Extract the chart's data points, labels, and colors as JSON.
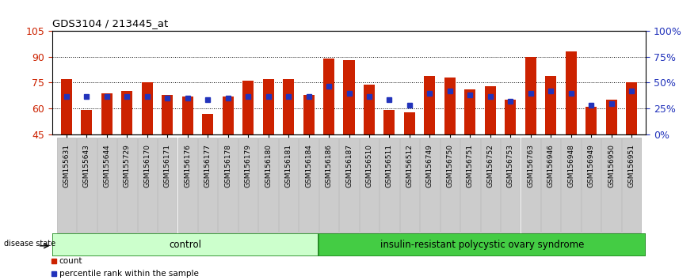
{
  "title": "GDS3104 / 213445_at",
  "samples": [
    "GSM155631",
    "GSM155643",
    "GSM155644",
    "GSM155729",
    "GSM156170",
    "GSM156171",
    "GSM156176",
    "GSM156177",
    "GSM156178",
    "GSM156179",
    "GSM156180",
    "GSM156181",
    "GSM156184",
    "GSM156186",
    "GSM156187",
    "GSM156510",
    "GSM156511",
    "GSM156512",
    "GSM156749",
    "GSM156750",
    "GSM156751",
    "GSM156752",
    "GSM156753",
    "GSM156763",
    "GSM156946",
    "GSM156948",
    "GSM156949",
    "GSM156950",
    "GSM156951"
  ],
  "bar_values": [
    77,
    59,
    69,
    70,
    75,
    68,
    67,
    57,
    67,
    76,
    77,
    77,
    68,
    89,
    88,
    74,
    59,
    58,
    79,
    78,
    71,
    73,
    65,
    90,
    79,
    93,
    61,
    65,
    75
  ],
  "blue_values": [
    67,
    67,
    67,
    67,
    67,
    66,
    66,
    65,
    66,
    67,
    67,
    67,
    67,
    73,
    69,
    67,
    65,
    62,
    69,
    70,
    68,
    67,
    64,
    69,
    70,
    69,
    62,
    63,
    70
  ],
  "y_min": 45,
  "y_max": 105,
  "yticks_left": [
    45,
    60,
    75,
    90,
    105
  ],
  "right_pct_ticks": [
    0,
    25,
    50,
    75,
    100
  ],
  "grid_values": [
    60,
    75,
    90
  ],
  "bar_color": "#cc2200",
  "blue_color": "#2233bb",
  "n_control": 13,
  "group_labels": [
    "control",
    "insulin-resistant polycystic ovary syndrome"
  ],
  "ctrl_facecolor": "#ccffcc",
  "ctrl_edgecolor": "#228822",
  "dis_facecolor": "#44cc44",
  "dis_edgecolor": "#228822",
  "disease_state_label": "disease state",
  "legend_count_label": "count",
  "legend_pct_label": "percentile rank within the sample",
  "bar_width": 0.55,
  "blue_marker_size": 4,
  "tick_label_fontsize": 6.5,
  "tick_bg_color": "#cccccc",
  "bg_color": "#ffffff"
}
